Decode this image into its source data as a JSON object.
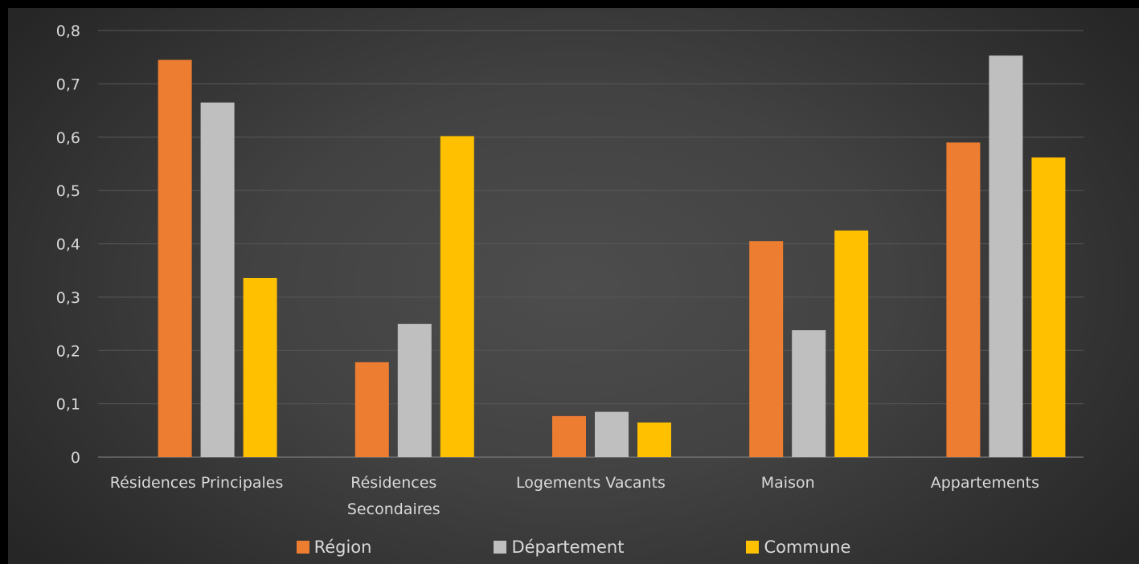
{
  "chart_data": {
    "type": "bar",
    "categories": [
      [
        "Résidences Principales"
      ],
      [
        "Résidences",
        "Secondaires"
      ],
      [
        "Logements Vacants"
      ],
      [
        "Maison"
      ],
      [
        "Appartements"
      ]
    ],
    "series": [
      {
        "name": "Région",
        "color": "#ED7D31",
        "values": [
          0.745,
          0.178,
          0.077,
          0.405,
          0.59
        ]
      },
      {
        "name": "Département",
        "color": "#BFBFBF",
        "values": [
          0.665,
          0.25,
          0.085,
          0.238,
          0.753
        ]
      },
      {
        "name": "Commune",
        "color": "#FFC000",
        "values": [
          0.336,
          0.602,
          0.065,
          0.425,
          0.562
        ]
      }
    ],
    "yticks": [
      "0",
      "0,1",
      "0,2",
      "0,3",
      "0,4",
      "0,5",
      "0,6",
      "0,7",
      "0,8"
    ],
    "ylim": [
      0,
      0.8
    ],
    "grid": true,
    "legend_position": "bottom"
  }
}
